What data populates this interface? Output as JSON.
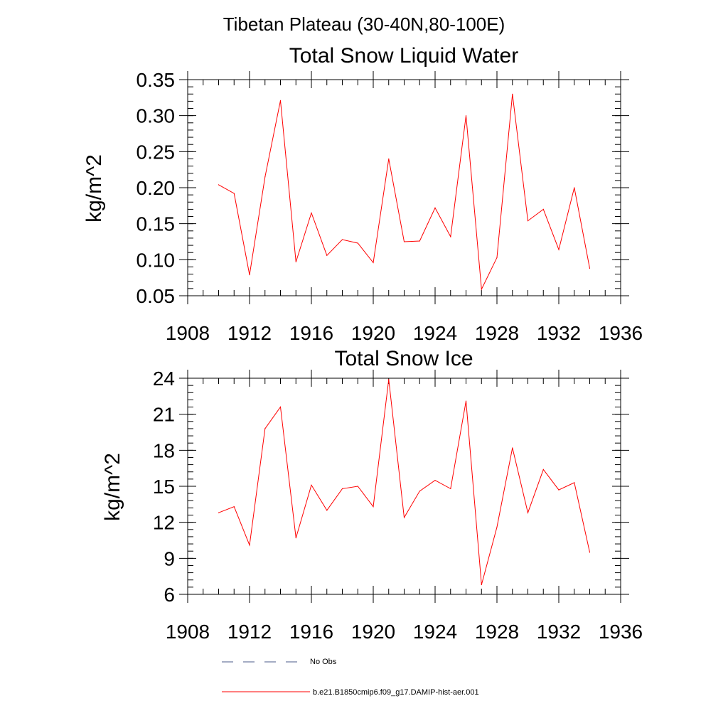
{
  "page_title": "Tibetan Plateau (30-40N,80-100E)",
  "chart_data": [
    {
      "type": "line",
      "title": "Total Snow Liquid Water",
      "xlabel": "",
      "ylabel": "kg/m^2",
      "xlim": [
        1908,
        1936
      ],
      "ylim": [
        0.05,
        0.35
      ],
      "x_ticks": [
        "1908",
        "1912",
        "1916",
        "1920",
        "1924",
        "1928",
        "1932",
        "1936"
      ],
      "y_ticks": [
        "0.05",
        "0.10",
        "0.15",
        "0.20",
        "0.25",
        "0.30",
        "0.35"
      ],
      "grid": false,
      "x": [
        1910,
        1911,
        1912,
        1913,
        1914,
        1915,
        1916,
        1917,
        1918,
        1919,
        1920,
        1921,
        1922,
        1923,
        1924,
        1925,
        1926,
        1927,
        1928,
        1929,
        1930,
        1931,
        1932,
        1933,
        1934
      ],
      "series": [
        {
          "name": "b.e21.B1850cmip6.f09_g17.DAMIP-hist-aer.001",
          "color": "#ff0000",
          "values": [
            0.204,
            0.192,
            0.079,
            0.215,
            0.321,
            0.097,
            0.165,
            0.106,
            0.128,
            0.123,
            0.096,
            0.24,
            0.125,
            0.126,
            0.172,
            0.132,
            0.3,
            0.059,
            0.103,
            0.33,
            0.154,
            0.17,
            0.114,
            0.2,
            0.088
          ]
        }
      ]
    },
    {
      "type": "line",
      "title": "Total Snow Ice",
      "xlabel": "",
      "ylabel": "kg/m^2",
      "xlim": [
        1908,
        1936
      ],
      "ylim": [
        6,
        24
      ],
      "x_ticks": [
        "1908",
        "1912",
        "1916",
        "1920",
        "1924",
        "1928",
        "1932",
        "1936"
      ],
      "y_ticks": [
        "6",
        "9",
        "12",
        "15",
        "18",
        "21",
        "24"
      ],
      "grid": false,
      "x": [
        1910,
        1911,
        1912,
        1913,
        1914,
        1915,
        1916,
        1917,
        1918,
        1919,
        1920,
        1921,
        1922,
        1923,
        1924,
        1925,
        1926,
        1927,
        1928,
        1929,
        1930,
        1931,
        1932,
        1933,
        1934
      ],
      "series": [
        {
          "name": "b.e21.B1850cmip6.f09_g17.DAMIP-hist-aer.001",
          "color": "#ff0000",
          "values": [
            12.8,
            13.3,
            10.1,
            19.8,
            21.6,
            10.7,
            15.1,
            13.0,
            14.8,
            15.0,
            13.3,
            23.9,
            12.4,
            14.6,
            15.5,
            14.8,
            22.1,
            6.8,
            11.6,
            18.2,
            12.8,
            16.4,
            14.7,
            15.3,
            9.5
          ]
        }
      ]
    }
  ],
  "legend": {
    "placement": "bottom",
    "items": [
      {
        "label": "No Obs",
        "color": "#4a5a8a",
        "style": "dashed"
      },
      {
        "label": "b.e21.B1850cmip6.f09_g17.DAMIP-hist-aer.001",
        "color": "#ff0000",
        "style": "solid"
      }
    ]
  }
}
